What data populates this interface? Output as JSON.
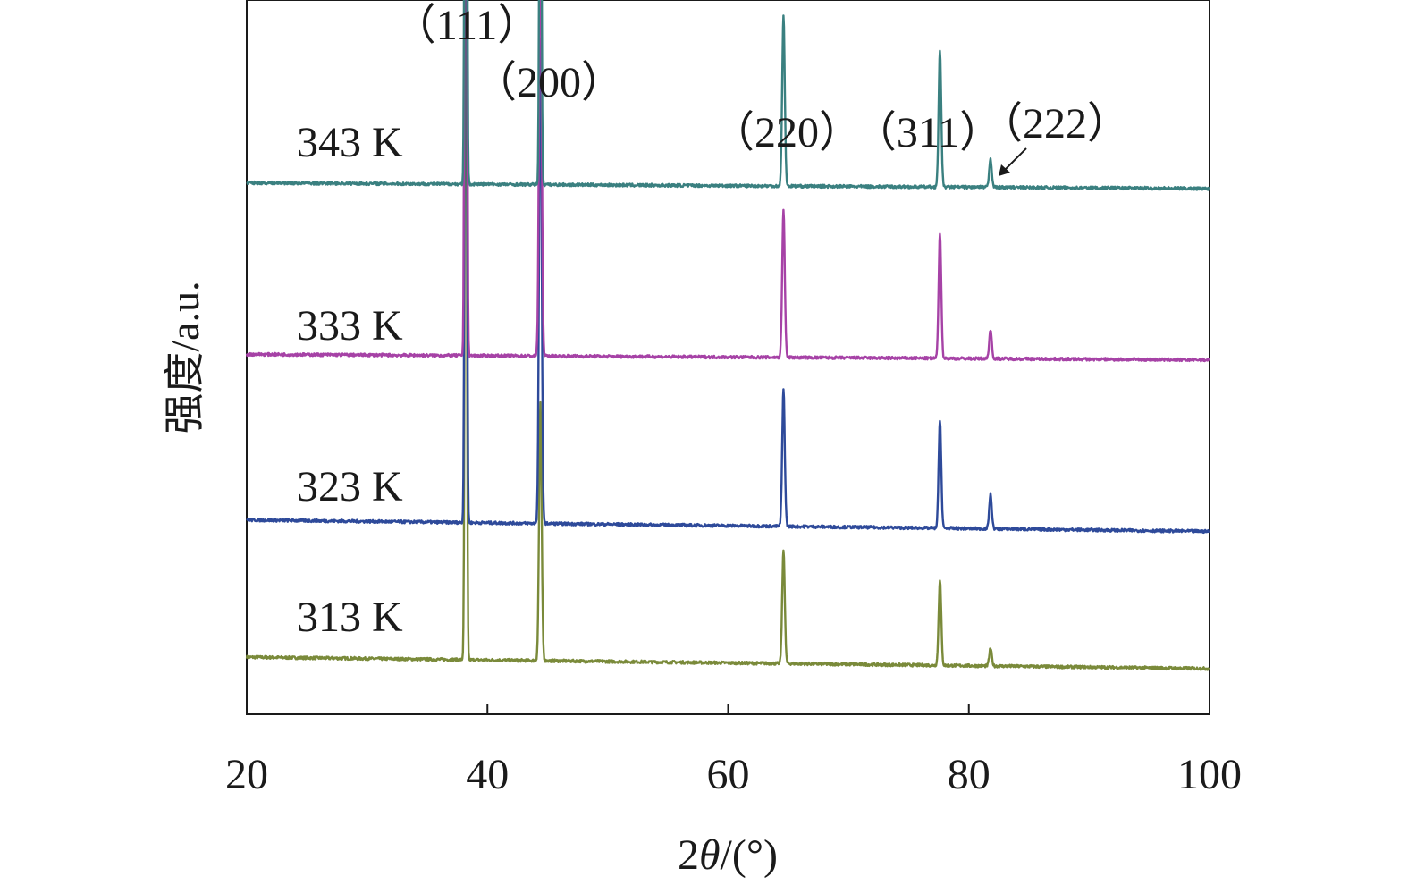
{
  "chart_data": {
    "type": "line",
    "title": "",
    "xlabel": "2θ/(°)",
    "xlabel_parts": {
      "prefix": "2",
      "italic": "θ",
      "suffix": "/(°)"
    },
    "ylabel": "强度/a.u.",
    "xlim": [
      20,
      100
    ],
    "xticks": [
      20,
      40,
      60,
      80,
      100
    ],
    "grid": false,
    "legend": "none",
    "peaks": [
      {
        "label": "（111）",
        "x": 38.2
      },
      {
        "label": "（200）",
        "x": 44.4
      },
      {
        "label": "（220）",
        "x": 64.6
      },
      {
        "label": "（311）",
        "x": 77.6
      },
      {
        "label": "（222）",
        "x": 81.8
      }
    ],
    "series": [
      {
        "name": "313 K",
        "color": "#7a8a3a",
        "baseline_start": 1.0,
        "baseline_end": 0.8,
        "peaks": [
          {
            "x": 38.2,
            "intensity": 16.0
          },
          {
            "x": 44.4,
            "intensity": 4.5
          },
          {
            "x": 64.6,
            "intensity": 2.0
          },
          {
            "x": 77.6,
            "intensity": 1.5
          },
          {
            "x": 81.8,
            "intensity": 0.3
          }
        ]
      },
      {
        "name": "323 K",
        "color": "#2e4a9a",
        "baseline_start": 3.4,
        "baseline_end": 3.2,
        "peaks": [
          {
            "x": 38.2,
            "intensity": 22.0
          },
          {
            "x": 44.4,
            "intensity": 8.5
          },
          {
            "x": 64.6,
            "intensity": 2.4
          },
          {
            "x": 77.6,
            "intensity": 1.9
          },
          {
            "x": 81.8,
            "intensity": 0.6
          }
        ]
      },
      {
        "name": "333 K",
        "color": "#a642a6",
        "baseline_start": 6.3,
        "baseline_end": 6.2,
        "peaks": [
          {
            "x": 38.2,
            "intensity": 27.5
          },
          {
            "x": 44.4,
            "intensity": 8.0
          },
          {
            "x": 64.6,
            "intensity": 2.6
          },
          {
            "x": 77.6,
            "intensity": 2.2
          },
          {
            "x": 81.8,
            "intensity": 0.5
          }
        ]
      },
      {
        "name": "343 K",
        "color": "#3a8080",
        "baseline_start": 9.3,
        "baseline_end": 9.2,
        "peaks": [
          {
            "x": 38.2,
            "intensity": 22.0
          },
          {
            "x": 44.4,
            "intensity": 11.0
          },
          {
            "x": 64.6,
            "intensity": 3.0
          },
          {
            "x": 77.6,
            "intensity": 2.4
          },
          {
            "x": 81.8,
            "intensity": 0.5
          }
        ]
      }
    ],
    "ylim": [
      0,
      12.5
    ]
  }
}
